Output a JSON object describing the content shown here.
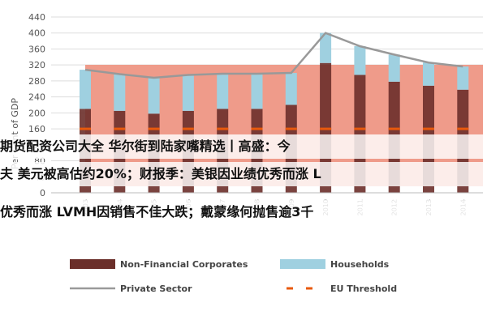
{
  "colors": {
    "nfc": "#6b2f2a",
    "households": "#9fd0e0",
    "private_sector": "#999999",
    "eu_threshold": "#e8590c",
    "banner_bg": "#ef9b8a",
    "grid": "#dddddd"
  },
  "overlay": {
    "line1": "期货配资公司大全 华尔街到陆家嘴精选丨高盛：今",
    "line2": "夫 美元被高估约20%；财报季：美银因业绩优秀而涨 L",
    "line3": "优秀而涨 LVMH因销售不佳大跌；戴蒙缘何抛售逾3千"
  },
  "chart_data": {
    "type": "bar",
    "ylabel": "Per Cent of GDP",
    "ylim": [
      0,
      440
    ],
    "yticks": [
      0,
      40,
      80,
      120,
      160,
      200,
      240,
      280,
      320,
      360,
      400,
      440
    ],
    "categories": [
      "2003",
      "2004",
      "2005",
      "2006",
      "2007",
      "2008",
      "2009",
      "2010",
      "2011",
      "2012",
      "2013",
      "2014"
    ],
    "series": [
      {
        "name": "Non-Financial Corporates",
        "kind": "stacked-bar",
        "values": [
          210,
          205,
          198,
          205,
          210,
          210,
          220,
          325,
          295,
          278,
          268,
          258
        ]
      },
      {
        "name": "Households",
        "kind": "stacked-bar",
        "values": [
          98,
          92,
          90,
          90,
          88,
          88,
          80,
          75,
          72,
          68,
          58,
          58
        ]
      },
      {
        "name": "Private Sector",
        "kind": "line",
        "values": [
          308,
          297,
          288,
          295,
          298,
          298,
          300,
          400,
          367,
          346,
          326,
          316
        ]
      },
      {
        "name": "EU Threshold",
        "kind": "dashed-line",
        "values": [
          160,
          160,
          160,
          160,
          160,
          160,
          160,
          160,
          160,
          160,
          160,
          160
        ]
      }
    ],
    "legend": "bottom",
    "grid": true
  }
}
